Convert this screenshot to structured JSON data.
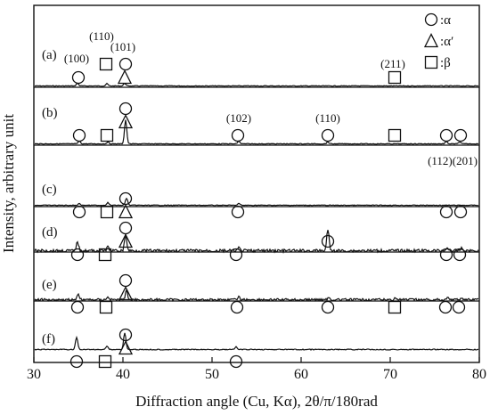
{
  "chart_data": {
    "type": "line",
    "xlabel": "Diffraction angle (Cu, Kα), 2θ/π/180rad",
    "ylabel": "Intensity, arbitrary unit",
    "xlim": [
      30,
      80
    ],
    "x_ticks": [
      "30",
      "40",
      "50",
      "60",
      "70",
      "80"
    ],
    "legend": [
      {
        "shape": "circle",
        "label": ":α"
      },
      {
        "shape": "triangle",
        "label": ":α′"
      },
      {
        "shape": "square",
        "label": ":β"
      }
    ],
    "legend_position": "top-right",
    "panels": [
      {
        "label": "(a)",
        "noise": 0.4,
        "peaks": [
          {
            "x": 34.9,
            "h": 3
          },
          {
            "x": 38.2,
            "h": 2.5
          },
          {
            "x": 40.2,
            "h": 3
          }
        ],
        "markers": [
          {
            "shape": "circle",
            "x": 35.0,
            "row": 0
          },
          {
            "shape": "square",
            "x": 38.1,
            "row": 1
          },
          {
            "shape": "triangle",
            "x": 40.2,
            "row": 0
          },
          {
            "shape": "circle",
            "x": 40.3,
            "row": 1
          },
          {
            "shape": "square",
            "x": 70.5,
            "row": 0
          }
        ]
      },
      {
        "label": "(b)",
        "noise": 0.4,
        "peaks": [
          {
            "x": 35.1,
            "h": 3
          },
          {
            "x": 38.3,
            "h": 2
          },
          {
            "x": 40.3,
            "h": 27
          },
          {
            "x": 53.0,
            "h": 3
          },
          {
            "x": 63.0,
            "h": 2
          },
          {
            "x": 76.3,
            "h": 2.5
          },
          {
            "x": 77.8,
            "h": 2
          }
        ],
        "markers": [
          {
            "shape": "circle",
            "x": 35.1,
            "row": 0
          },
          {
            "shape": "square",
            "x": 38.2,
            "row": 0
          },
          {
            "shape": "triangle",
            "x": 40.3,
            "row": 1
          },
          {
            "shape": "circle",
            "x": 40.3,
            "row": 2
          },
          {
            "shape": "circle",
            "x": 52.9,
            "row": 0
          },
          {
            "shape": "circle",
            "x": 63.0,
            "row": 0
          },
          {
            "shape": "square",
            "x": 70.5,
            "row": 0
          },
          {
            "shape": "circle",
            "x": 76.3,
            "row": 0
          },
          {
            "shape": "circle",
            "x": 77.9,
            "row": 0
          }
        ]
      },
      {
        "label": "(c)",
        "noise": 0.4,
        "peaks": [
          {
            "x": 35.1,
            "h": 2
          },
          {
            "x": 38.3,
            "h": 3
          },
          {
            "x": 40.4,
            "h": 8
          },
          {
            "x": 53.0,
            "h": 2
          }
        ],
        "markers": [
          {
            "shape": "circle",
            "x": 35.1,
            "row": 0
          },
          {
            "shape": "square",
            "x": 38.2,
            "row": 0
          },
          {
            "shape": "triangle",
            "x": 40.3,
            "row": 0
          },
          {
            "shape": "circle",
            "x": 40.3,
            "row": 1
          },
          {
            "shape": "circle",
            "x": 52.9,
            "row": 0
          },
          {
            "shape": "circle",
            "x": 76.3,
            "row": 0
          },
          {
            "shape": "circle",
            "x": 77.9,
            "row": 0
          }
        ]
      },
      {
        "label": "(d)",
        "noise": 1.6,
        "peaks": [
          {
            "x": 34.9,
            "h": 10
          },
          {
            "x": 38.3,
            "h": 4
          },
          {
            "x": 40.3,
            "h": 18
          },
          {
            "x": 53.0,
            "h": 3
          },
          {
            "x": 63.0,
            "h": 24
          },
          {
            "x": 76.4,
            "h": 4
          },
          {
            "x": 78.0,
            "h": 3
          }
        ],
        "markers": [
          {
            "shape": "circle",
            "x": 34.9,
            "row": 0
          },
          {
            "shape": "square",
            "x": 38.0,
            "row": 0
          },
          {
            "shape": "triangle",
            "x": 40.3,
            "row": 1
          },
          {
            "shape": "circle",
            "x": 40.3,
            "row": 2
          },
          {
            "shape": "circle",
            "x": 52.7,
            "row": 0
          },
          {
            "shape": "circle",
            "x": 63.0,
            "row": 1
          },
          {
            "shape": "circle",
            "x": 76.3,
            "row": 0
          },
          {
            "shape": "circle",
            "x": 77.8,
            "row": 0
          }
        ]
      },
      {
        "label": "(e)",
        "noise": 1.3,
        "peaks": [
          {
            "x": 35.0,
            "h": 6
          },
          {
            "x": 38.3,
            "h": 3
          },
          {
            "x": 40.4,
            "h": 10
          },
          {
            "x": 53.0,
            "h": 3
          },
          {
            "x": 63.1,
            "h": 2
          },
          {
            "x": 70.6,
            "h": 2
          },
          {
            "x": 76.5,
            "h": 3
          },
          {
            "x": 78.0,
            "h": 2
          }
        ],
        "markers": [
          {
            "shape": "circle",
            "x": 34.9,
            "row": 0
          },
          {
            "shape": "square",
            "x": 38.1,
            "row": 0
          },
          {
            "shape": "triangle",
            "x": 40.3,
            "row": 1
          },
          {
            "shape": "circle",
            "x": 40.3,
            "row": 2
          },
          {
            "shape": "circle",
            "x": 52.8,
            "row": 0
          },
          {
            "shape": "circle",
            "x": 63.0,
            "row": 0
          },
          {
            "shape": "square",
            "x": 70.5,
            "row": 0
          },
          {
            "shape": "circle",
            "x": 76.2,
            "row": 0
          },
          {
            "shape": "circle",
            "x": 77.7,
            "row": 0
          }
        ]
      },
      {
        "label": "(f)",
        "noise": 0.5,
        "peaks": [
          {
            "x": 34.8,
            "h": 14
          },
          {
            "x": 38.2,
            "h": 4
          },
          {
            "x": 40.2,
            "h": 19
          },
          {
            "x": 52.7,
            "h": 3
          }
        ],
        "markers": [
          {
            "shape": "circle",
            "x": 34.8,
            "row": 0
          },
          {
            "shape": "square",
            "x": 38.0,
            "row": 0
          },
          {
            "shape": "triangle",
            "x": 40.3,
            "row": 1
          },
          {
            "shape": "circle",
            "x": 40.3,
            "row": 2
          },
          {
            "shape": "circle",
            "x": 52.7,
            "row": 0
          }
        ]
      }
    ],
    "peak_labels": [
      {
        "text": "(100)",
        "panel": 0,
        "x": 34.8
      },
      {
        "text": "(110)",
        "panel": 0,
        "x": 37.6
      },
      {
        "text": "(101)",
        "panel": 0,
        "x": 40.0
      },
      {
        "text": "(211)",
        "panel": 0,
        "x": 70.3
      },
      {
        "text": "(102)",
        "panel": 1,
        "x": 53.0
      },
      {
        "text": "(110)",
        "panel": 1,
        "x": 63.0
      },
      {
        "text": "(112)(201)",
        "panel": 1,
        "x": 77.0
      }
    ],
    "colors": {
      "line": "#111111",
      "marker": "#111111",
      "background": "#ffffff"
    }
  }
}
